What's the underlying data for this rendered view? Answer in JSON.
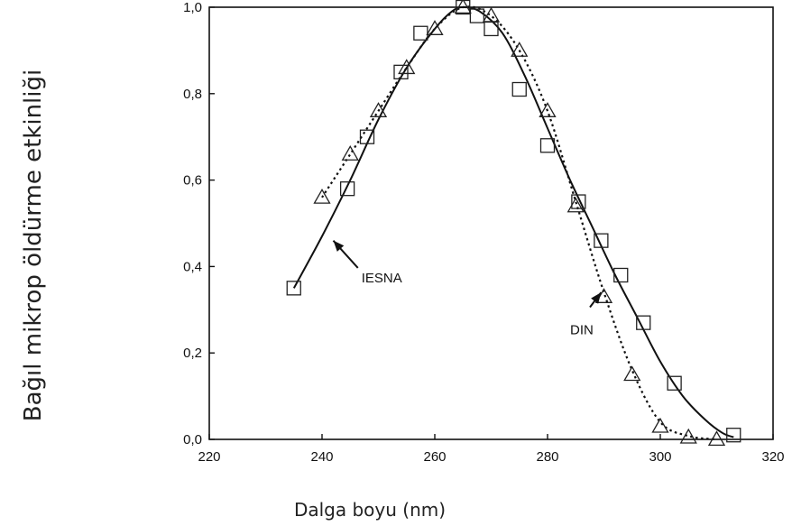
{
  "chart_data": {
    "type": "line",
    "title": "",
    "xlabel": "Dalga boyu (nm)",
    "ylabel": "Bağıl mikrop öldürme etkinliği",
    "xlim": [
      220,
      320
    ],
    "ylim": [
      0,
      1.0
    ],
    "x_ticks": [
      220,
      240,
      260,
      280,
      300,
      320
    ],
    "y_ticks": [
      0,
      0.2,
      0.4,
      0.6,
      0.8,
      1.0
    ],
    "x_tick_labels": [
      "220",
      "240",
      "260",
      "280",
      "300",
      "320"
    ],
    "y_tick_labels": [
      "0,0",
      "0,2",
      "0,4",
      "0,6",
      "0,8",
      "1,0"
    ],
    "grid": false,
    "legend": "none",
    "series": [
      {
        "name": "IESNA",
        "marker": "square",
        "line_style": "solid",
        "color": "#111111",
        "points": [
          [
            235,
            0.35
          ],
          [
            244.5,
            0.58
          ],
          [
            248,
            0.7
          ],
          [
            254,
            0.85
          ],
          [
            257.5,
            0.94
          ],
          [
            265,
            1.0
          ],
          [
            267.5,
            0.98
          ],
          [
            270,
            0.95
          ],
          [
            275,
            0.81
          ],
          [
            280,
            0.68
          ],
          [
            285.5,
            0.55
          ],
          [
            289.5,
            0.46
          ],
          [
            293,
            0.38
          ],
          [
            297,
            0.27
          ],
          [
            302.5,
            0.13
          ],
          [
            313,
            0.01
          ]
        ],
        "curve": [
          [
            235,
            0.35
          ],
          [
            240,
            0.47
          ],
          [
            245,
            0.6
          ],
          [
            250,
            0.74
          ],
          [
            255,
            0.86
          ],
          [
            260,
            0.95
          ],
          [
            263,
            0.99
          ],
          [
            265,
            1.0
          ],
          [
            268,
            0.99
          ],
          [
            272,
            0.94
          ],
          [
            276,
            0.84
          ],
          [
            280,
            0.72
          ],
          [
            284,
            0.6
          ],
          [
            288,
            0.49
          ],
          [
            292,
            0.38
          ],
          [
            296,
            0.28
          ],
          [
            300,
            0.18
          ],
          [
            304,
            0.1
          ],
          [
            308,
            0.045
          ],
          [
            311,
            0.015
          ],
          [
            313,
            0.005
          ]
        ]
      },
      {
        "name": "DIN",
        "marker": "triangle",
        "line_style": "dotted",
        "color": "#111111",
        "points": [
          [
            240,
            0.56
          ],
          [
            245,
            0.66
          ],
          [
            250,
            0.76
          ],
          [
            255,
            0.86
          ],
          [
            260,
            0.95
          ],
          [
            265,
            1.0
          ],
          [
            270,
            0.98
          ],
          [
            275,
            0.9
          ],
          [
            280,
            0.76
          ],
          [
            285,
            0.54
          ],
          [
            290,
            0.33
          ],
          [
            295,
            0.15
          ],
          [
            300,
            0.03
          ],
          [
            305,
            0.005
          ],
          [
            310,
            0.0
          ]
        ],
        "curve": [
          [
            240,
            0.56
          ],
          [
            245,
            0.66
          ],
          [
            250,
            0.76
          ],
          [
            255,
            0.86
          ],
          [
            260,
            0.95
          ],
          [
            265,
            1.0
          ],
          [
            270,
            0.98
          ],
          [
            275,
            0.9
          ],
          [
            280,
            0.76
          ],
          [
            285,
            0.55
          ],
          [
            290,
            0.34
          ],
          [
            295,
            0.16
          ],
          [
            300,
            0.04
          ],
          [
            305,
            0.008
          ],
          [
            310,
            0.0
          ]
        ]
      }
    ],
    "annotations": [
      {
        "text": "IESNA",
        "series": "IESNA",
        "label_at": [
          247,
          0.38
        ],
        "arrow_to": [
          242,
          0.46
        ]
      },
      {
        "text": "DIN",
        "series": "DIN",
        "label_at": [
          284,
          0.26
        ],
        "arrow_to": [
          289.5,
          0.34
        ]
      }
    ]
  }
}
